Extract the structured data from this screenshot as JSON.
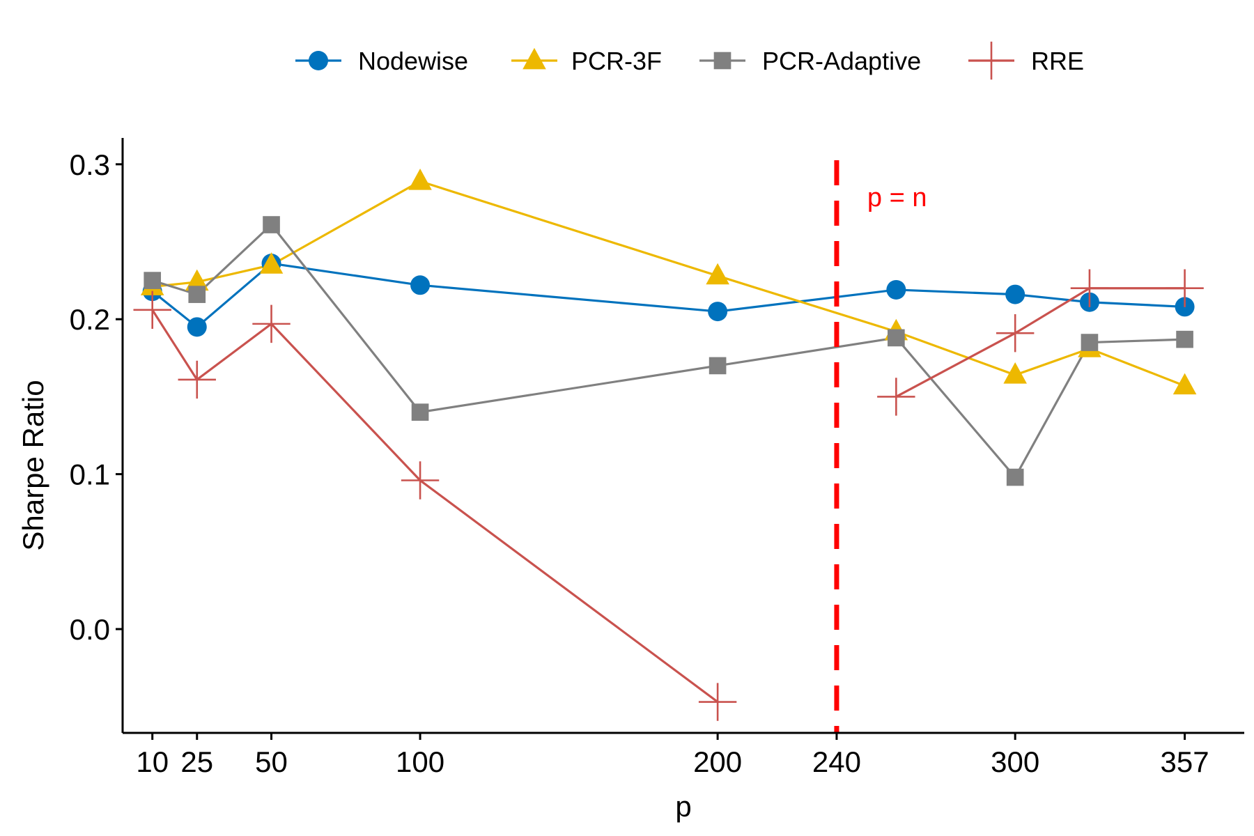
{
  "chart_data": {
    "type": "line",
    "title": "",
    "xlabel": "p",
    "ylabel": "Sharpe Ratio",
    "xlim": [
      0,
      377
    ],
    "ylim": [
      -0.067,
      0.317
    ],
    "x_ticks": [
      10,
      25,
      50,
      100,
      200,
      240,
      300,
      357
    ],
    "x_tick_labels": [
      "10",
      "25",
      "50",
      "100",
      "200",
      "240",
      "300",
      "357"
    ],
    "y_ticks": [
      0.0,
      0.1,
      0.2,
      0.3
    ],
    "y_tick_labels": [
      "0.0",
      "0.1",
      "0.2",
      "0.3"
    ],
    "legend_position": "top",
    "grid": false,
    "series": [
      {
        "name": "Nodewise",
        "color": "#0072BD",
        "marker": "circle",
        "x": [
          10,
          25,
          50,
          100,
          200,
          260,
          300,
          325,
          357
        ],
        "values": [
          0.218,
          0.195,
          0.236,
          0.222,
          0.205,
          0.219,
          0.216,
          0.211,
          0.208
        ]
      },
      {
        "name": "PCR-3F",
        "color": "#EDB800",
        "marker": "triangle",
        "x": [
          10,
          25,
          50,
          100,
          200,
          260,
          300,
          325,
          357
        ],
        "values": [
          0.221,
          0.224,
          0.235,
          0.289,
          0.228,
          0.192,
          0.164,
          0.181,
          0.157
        ]
      },
      {
        "name": "PCR-Adaptive",
        "color": "#808080",
        "marker": "square",
        "x": [
          10,
          25,
          50,
          100,
          200,
          260,
          300,
          325,
          357
        ],
        "values": [
          0.225,
          0.216,
          0.261,
          0.14,
          0.17,
          0.188,
          0.098,
          0.185,
          0.187
        ]
      },
      {
        "name": "RRE",
        "color": "#C9524E",
        "marker": "plus",
        "segments": [
          {
            "x": [
              10,
              25,
              50,
              100,
              200
            ],
            "values": [
              0.206,
              0.161,
              0.197,
              0.096,
              -0.047
            ]
          },
          {
            "x": [
              260,
              300,
              325,
              357
            ],
            "values": [
              0.15,
              0.191,
              0.22,
              0.22
            ]
          }
        ]
      }
    ],
    "annotations": [
      {
        "type": "vline",
        "x": 240,
        "color": "#FF0000",
        "style": "dashed",
        "label": "p = n"
      }
    ]
  }
}
